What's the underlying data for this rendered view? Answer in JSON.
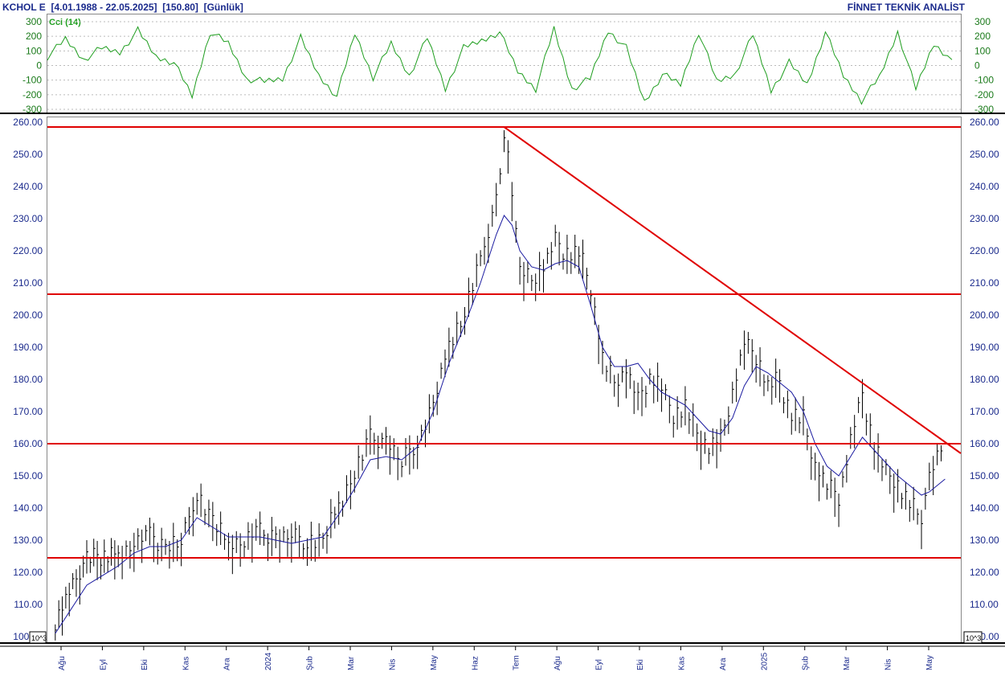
{
  "header": {
    "left": "KCHOL E  [4.01.1988 - 22.05.2025]  [150.80]  [Günlük]",
    "right": "FİNNET TEKNİK ANALİST"
  },
  "colors": {
    "axis_text": "#1a2a8c",
    "cci_line": "#1f9e1f",
    "price_bars": "#000000",
    "moving_average": "#1a1aa0",
    "support_resistance": "#e00000"
  },
  "scale_labels": {
    "cci_left_bottom": "10^3",
    "price_multiplier": "10^3"
  },
  "chart_data": [
    {
      "type": "line",
      "title": "Cci (14)",
      "ylim": [
        -300,
        300
      ],
      "yticks": [
        -300,
        -200,
        -100,
        0,
        100,
        200,
        300
      ],
      "grid": true,
      "x_range": [
        0,
        100
      ],
      "x": [
        0,
        2,
        4,
        6,
        8,
        10,
        12,
        14,
        16,
        18,
        20,
        22,
        24,
        26,
        28,
        30,
        32,
        34,
        36,
        38,
        40,
        42,
        44,
        46,
        48,
        50,
        52,
        54,
        56,
        58,
        60,
        62,
        64,
        66,
        68,
        70,
        72,
        74,
        76,
        78,
        80,
        82,
        84,
        86,
        88,
        90,
        92,
        94,
        96,
        98,
        100
      ],
      "values": [
        60,
        180,
        40,
        120,
        90,
        240,
        60,
        20,
        -210,
        230,
        150,
        -90,
        -110,
        -90,
        190,
        -70,
        -210,
        220,
        -80,
        150,
        -70,
        190,
        -160,
        120,
        170,
        230,
        -40,
        -160,
        250,
        -160,
        -90,
        240,
        120,
        -250,
        -60,
        -130,
        230,
        -110,
        -60,
        210,
        -170,
        20,
        -130,
        230,
        -70,
        -240,
        -80,
        230,
        -160,
        150,
        40
      ]
    },
    {
      "type": "line",
      "title": "KCHOL E",
      "ylim": [
        100,
        260
      ],
      "yticks": [
        100,
        110,
        120,
        130,
        140,
        150,
        160,
        170,
        180,
        190,
        200,
        210,
        220,
        230,
        240,
        250,
        260
      ],
      "x_tick_labels": [
        "Ağu",
        "Eyl",
        "Eki",
        "Kas",
        "Ara",
        "2024",
        "Şub",
        "Mar",
        "Nis",
        "May",
        "Haz",
        "Tem",
        "Ağu",
        "Eyl",
        "Eki",
        "Kas",
        "Ara",
        "2025",
        "Şub",
        "Mar",
        "Nis",
        "May"
      ],
      "series": [
        {
          "style": "ohlc-bars",
          "points": [
            [
              2,
              104
            ],
            [
              10,
              123
            ],
            [
              18,
              125
            ],
            [
              22,
              128
            ],
            [
              26,
              130
            ],
            [
              30,
              127
            ],
            [
              34,
              128
            ],
            [
              38,
              144
            ],
            [
              42,
              134
            ],
            [
              46,
              128
            ],
            [
              50,
              129
            ],
            [
              54,
              131
            ],
            [
              58,
              130
            ],
            [
              62,
              130
            ],
            [
              66,
              129
            ],
            [
              70,
              128
            ],
            [
              74,
              140
            ],
            [
              78,
              150
            ],
            [
              82,
              160
            ],
            [
              86,
              160
            ],
            [
              90,
              153
            ],
            [
              94,
              160
            ],
            [
              98,
              170
            ],
            [
              102,
              190
            ],
            [
              106,
              200
            ],
            [
              110,
              215
            ],
            [
              114,
              235
            ],
            [
              116,
              255
            ],
            [
              118,
              238
            ],
            [
              120,
              212
            ],
            [
              123,
              210
            ],
            [
              126,
              214
            ],
            [
              129,
              222
            ],
            [
              132,
              218
            ],
            [
              135,
              218
            ],
            [
              138,
              208
            ],
            [
              141,
              185
            ],
            [
              144,
              178
            ],
            [
              147,
              182
            ],
            [
              150,
              172
            ],
            [
              153,
              180
            ],
            [
              156,
              176
            ],
            [
              159,
              168
            ],
            [
              162,
              170
            ],
            [
              165,
              162
            ],
            [
              168,
              158
            ],
            [
              171,
              160
            ],
            [
              174,
              175
            ],
            [
              177,
              190
            ],
            [
              180,
              186
            ],
            [
              183,
              177
            ],
            [
              186,
              178
            ],
            [
              189,
              168
            ],
            [
              192,
              166
            ],
            [
              195,
              152
            ],
            [
              198,
              146
            ],
            [
              201,
              142
            ],
            [
              204,
              160
            ],
            [
              207,
              174
            ],
            [
              210,
              158
            ],
            [
              213,
              150
            ],
            [
              216,
              146
            ],
            [
              219,
              140
            ],
            [
              222,
              136
            ],
            [
              224,
              148
            ],
            [
              227,
              157
            ],
            [
              228,
              151
            ]
          ]
        },
        {
          "style": "line",
          "points": [
            [
              2,
              101
            ],
            [
              10,
              116
            ],
            [
              18,
              122
            ],
            [
              22,
              126
            ],
            [
              26,
              128
            ],
            [
              30,
              128
            ],
            [
              34,
              130
            ],
            [
              38,
              137
            ],
            [
              42,
              134
            ],
            [
              46,
              131
            ],
            [
              50,
              131
            ],
            [
              54,
              131
            ],
            [
              58,
              130
            ],
            [
              62,
              129
            ],
            [
              66,
              130
            ],
            [
              70,
              131
            ],
            [
              74,
              138
            ],
            [
              78,
              146
            ],
            [
              82,
              155
            ],
            [
              86,
              156
            ],
            [
              90,
              155
            ],
            [
              94,
              159
            ],
            [
              98,
              170
            ],
            [
              102,
              185
            ],
            [
              106,
              197
            ],
            [
              110,
              210
            ],
            [
              114,
              225
            ],
            [
              116,
              231
            ],
            [
              118,
              228
            ],
            [
              120,
              220
            ],
            [
              123,
              215
            ],
            [
              126,
              214
            ],
            [
              129,
              216
            ],
            [
              132,
              217
            ],
            [
              135,
              215
            ],
            [
              138,
              203
            ],
            [
              141,
              190
            ],
            [
              144,
              184
            ],
            [
              147,
              184
            ],
            [
              150,
              185
            ],
            [
              153,
              180
            ],
            [
              156,
              176
            ],
            [
              159,
              174
            ],
            [
              162,
              172
            ],
            [
              165,
              168
            ],
            [
              168,
              164
            ],
            [
              171,
              163
            ],
            [
              174,
              168
            ],
            [
              177,
              178
            ],
            [
              180,
              184
            ],
            [
              183,
              182
            ],
            [
              186,
              179
            ],
            [
              189,
              176
            ],
            [
              192,
              170
            ],
            [
              195,
              160
            ],
            [
              198,
              153
            ],
            [
              201,
              150
            ],
            [
              204,
              156
            ],
            [
              207,
              162
            ],
            [
              210,
              158
            ],
            [
              213,
              154
            ],
            [
              216,
              150
            ],
            [
              219,
              147
            ],
            [
              222,
              144
            ],
            [
              224,
              145
            ],
            [
              227,
              148
            ],
            [
              228,
              149
            ]
          ]
        }
      ],
      "horizontal_lines": [
        258.5,
        206.5,
        160,
        124.5
      ],
      "trendline": [
        [
          116,
          258.5
        ],
        [
          232,
          157
        ]
      ]
    }
  ]
}
